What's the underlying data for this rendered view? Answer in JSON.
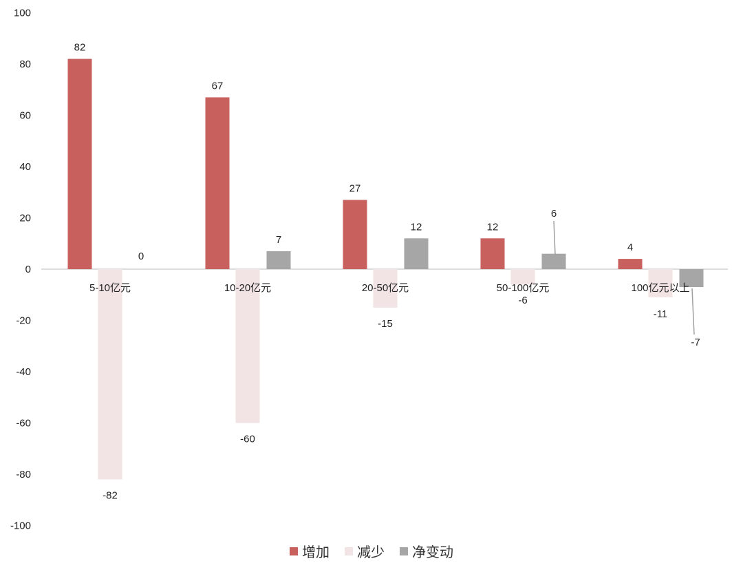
{
  "chart_data": {
    "type": "bar",
    "categories": [
      "5-10亿元",
      "10-20亿元",
      "20-50亿元",
      "50-100亿元",
      "100亿元以上"
    ],
    "series": [
      {
        "name": "增加",
        "values": [
          82,
          67,
          27,
          12,
          4
        ],
        "color": "#C8605E"
      },
      {
        "name": "减少",
        "values": [
          -82,
          -60,
          -15,
          -6,
          -11
        ],
        "color": "#F2E3E4"
      },
      {
        "name": "净变动",
        "values": [
          0,
          7,
          12,
          6,
          -7
        ],
        "color": "#A6A6A6"
      }
    ],
    "ylim": [
      -100,
      100
    ],
    "yticks": [
      100,
      80,
      60,
      40,
      20,
      0,
      -20,
      -40,
      -60,
      -80,
      -100
    ],
    "grid": false,
    "legend_position": "bottom",
    "data_labels": true
  }
}
